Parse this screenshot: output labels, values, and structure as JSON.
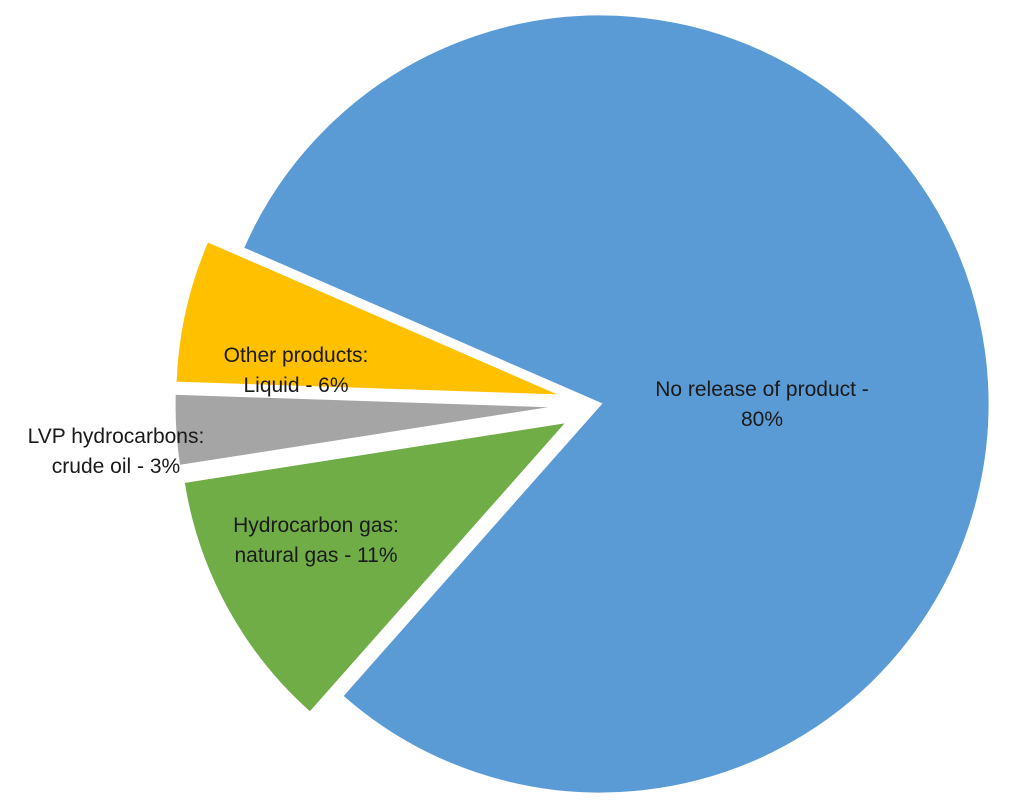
{
  "chart_data": {
    "type": "pie",
    "title": "",
    "slices": [
      {
        "key": "no-release",
        "label_lines": [
          "No release of product -",
          "80%"
        ],
        "value": 80,
        "color": "#5B9BD5"
      },
      {
        "key": "natural-gas",
        "label_lines": [
          "Hydrocarbon gas:",
          "natural gas - 11%"
        ],
        "value": 11,
        "color": "#70AD47"
      },
      {
        "key": "crude-oil",
        "label_lines": [
          "LVP hydrocarbons:",
          "crude oil - 3%"
        ],
        "value": 3,
        "color": "#A5A5A5"
      },
      {
        "key": "other-liquid",
        "label_lines": [
          "Other products:",
          "Liquid - 6%"
        ],
        "value": 6,
        "color": "#FFC000"
      }
    ]
  }
}
